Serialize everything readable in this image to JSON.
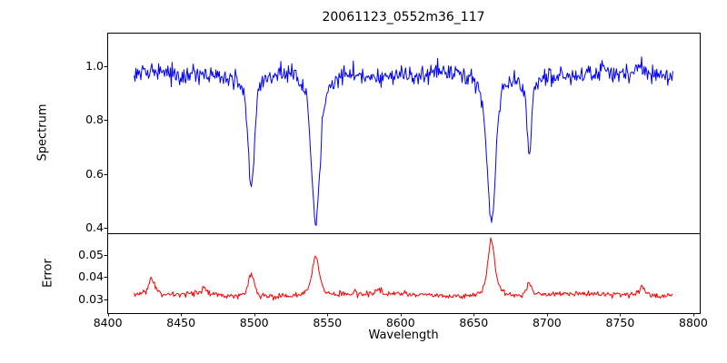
{
  "figure": {
    "background": "#ffffff"
  },
  "chart_data": {
    "type": "line",
    "title": "20061123_0552m36_117",
    "xlabel": "Wavelength",
    "grid": false,
    "xlim": [
      8399.6,
      8804.4
    ],
    "x_data_range": [
      8418,
      8786
    ],
    "xticks": [
      8400,
      8450,
      8500,
      8550,
      8600,
      8650,
      8700,
      8750,
      8800
    ],
    "xtick_labels": [
      "8400",
      "8450",
      "8500",
      "8550",
      "8600",
      "8650",
      "8700",
      "8750",
      "8800"
    ],
    "panels": [
      {
        "name": "spectrum",
        "ylabel": "Spectrum",
        "ylim": [
          0.38,
          1.125
        ],
        "yticks": [
          0.4,
          0.6,
          0.8,
          1.0
        ],
        "ytick_labels": [
          "0.4",
          "0.6",
          "0.8",
          "1.0"
        ],
        "series": {
          "name": "spectrum-flux",
          "color": "#0000ff",
          "style": "noisy-line",
          "continuum": 0.97,
          "noise_sigma": 0.018,
          "absorption_lines": [
            {
              "center": 8498,
              "min_value": 0.55,
              "depth": 0.42,
              "width": 2.2
            },
            {
              "center": 8542,
              "min_value": 0.43,
              "depth": 0.55,
              "width": 2.8
            },
            {
              "center": 8662,
              "min_value": 0.42,
              "depth": 0.55,
              "width": 2.8
            },
            {
              "center": 8688,
              "min_value": 0.69,
              "depth": 0.28,
              "width": 1.6
            }
          ]
        }
      },
      {
        "name": "error",
        "ylabel": "Error",
        "ylim": [
          0.024,
          0.0595
        ],
        "yticks": [
          0.03,
          0.04,
          0.05
        ],
        "ytick_labels": [
          "0.03",
          "0.04",
          "0.05"
        ],
        "series": {
          "name": "error-level",
          "color": "#ff0000",
          "style": "noisy-line",
          "baseline": 0.0318,
          "noise_sigma": 0.0006,
          "peaks": [
            {
              "center": 8430,
              "height": 0.0062,
              "width": 1.8
            },
            {
              "center": 8465,
              "height": 0.003,
              "width": 1.8
            },
            {
              "center": 8498,
              "height": 0.01,
              "width": 1.8
            },
            {
              "center": 8542,
              "height": 0.017,
              "width": 2.2
            },
            {
              "center": 8585,
              "height": 0.0022,
              "width": 1.5
            },
            {
              "center": 8662,
              "height": 0.0245,
              "width": 2.2
            },
            {
              "center": 8688,
              "height": 0.0052,
              "width": 1.4
            },
            {
              "center": 8765,
              "height": 0.0042,
              "width": 1.6
            }
          ]
        }
      }
    ]
  }
}
